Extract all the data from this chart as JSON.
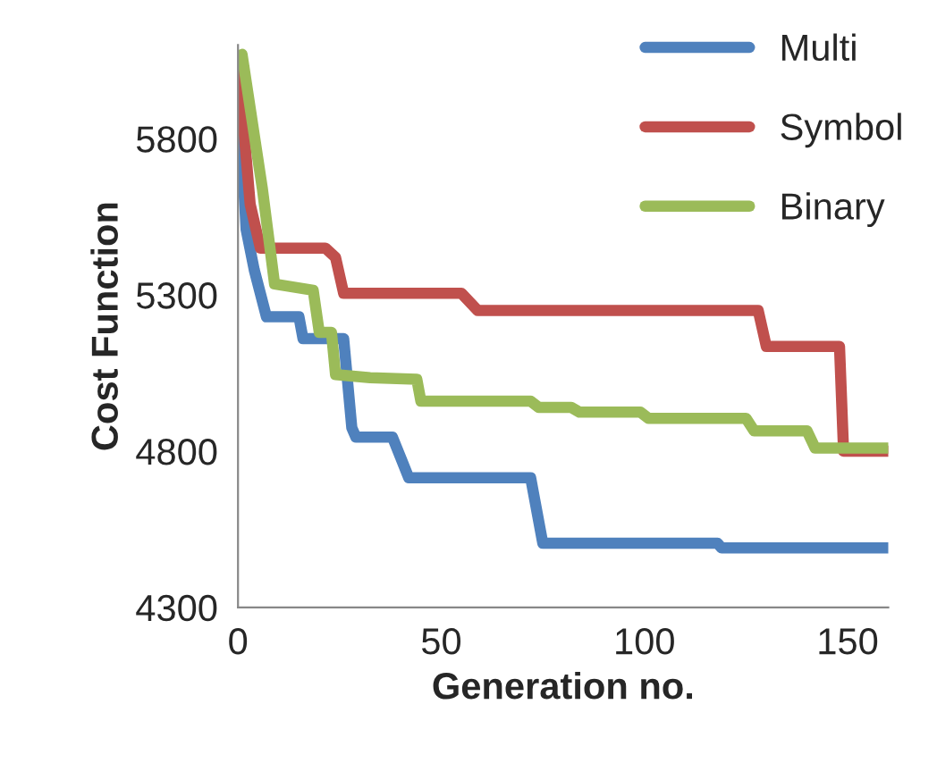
{
  "chart_data": {
    "type": "line",
    "xlabel": "Generation no.",
    "ylabel": "Cost Function",
    "xlim": [
      0,
      160
    ],
    "xticks": [
      0,
      50,
      100,
      150
    ],
    "ylim": [
      4300,
      6100
    ],
    "yticks": [
      4300,
      4800,
      5300,
      5800
    ],
    "grid": false,
    "legend": "top right",
    "marker": "none",
    "line_style": "solid",
    "series": [
      {
        "name": "Multi",
        "color": "#4f81bd",
        "x": [
          0,
          2,
          4,
          7,
          15,
          16,
          26,
          28,
          29,
          38,
          40,
          42,
          72,
          75,
          118,
          119,
          160
        ],
        "values": [
          5980,
          5510,
          5380,
          5230,
          5230,
          5160,
          5160,
          4875,
          4845,
          4845,
          4780,
          4715,
          4715,
          4505,
          4505,
          4490,
          4490
        ]
      },
      {
        "name": "Symbol",
        "color": "#c0504d",
        "x": [
          0,
          3,
          5.5,
          21.5,
          24,
          26,
          55,
          59,
          128,
          130,
          148,
          149,
          160
        ],
        "values": [
          6050,
          5590,
          5450,
          5450,
          5420,
          5305,
          5305,
          5250,
          5250,
          5135,
          5135,
          4800,
          4800
        ]
      },
      {
        "name": "Binary",
        "color": "#9bbb59",
        "x": [
          1,
          6,
          9,
          18.5,
          20,
          23,
          24,
          32.5,
          44,
          45,
          72,
          74,
          82,
          84,
          99,
          101,
          125,
          127,
          140,
          142,
          160
        ],
        "values": [
          6070,
          5640,
          5335,
          5315,
          5180,
          5180,
          5045,
          5035,
          5030,
          4960,
          4960,
          4940,
          4940,
          4925,
          4925,
          4905,
          4905,
          4865,
          4865,
          4810,
          4810
        ]
      }
    ]
  }
}
